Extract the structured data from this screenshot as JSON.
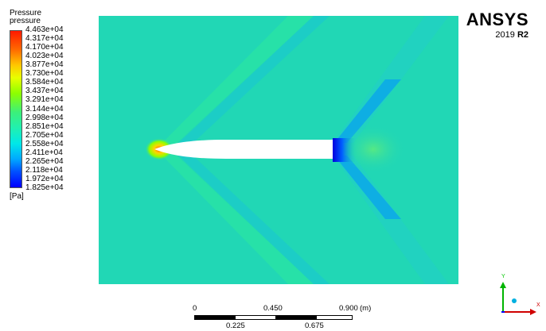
{
  "legend": {
    "title": "Pressure",
    "variable": "pressure",
    "unit": "[Pa]",
    "ticks": [
      "4.463e+04",
      "4.317e+04",
      "4.170e+04",
      "4.023e+04",
      "3.877e+04",
      "3.730e+04",
      "3.584e+04",
      "3.437e+04",
      "3.291e+04",
      "3.144e+04",
      "2.998e+04",
      "2.851e+04",
      "2.705e+04",
      "2.558e+04",
      "2.411e+04",
      "2.265e+04",
      "2.118e+04",
      "1.972e+04",
      "1.825e+04"
    ]
  },
  "brand": {
    "name": "ANSYS",
    "version_year": "2019",
    "version_release": "R2"
  },
  "scale_bar": {
    "top_labels": [
      "0",
      "0.450",
      "0.900"
    ],
    "unit": "(m)",
    "bottom_labels": [
      "0.225",
      "0.675"
    ]
  },
  "axes": {
    "x_label": "X",
    "y_label": "Y"
  },
  "colors": {
    "field_background": "#21d7b5",
    "high_pressure": "#ff1a00",
    "low_pressure": "#0000ff"
  }
}
